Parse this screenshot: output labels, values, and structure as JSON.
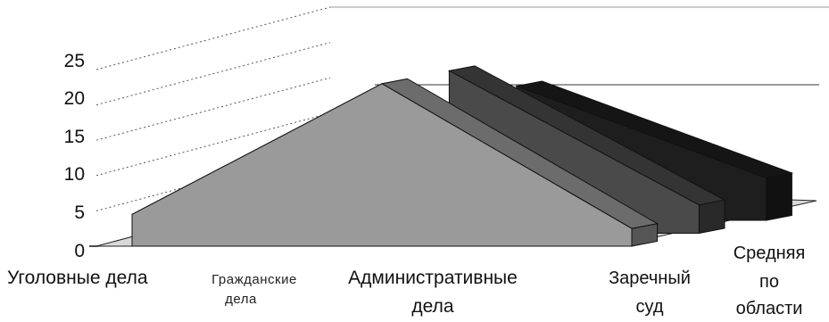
{
  "chart_data": {
    "type": "area",
    "variant": "3d-area",
    "title": "",
    "xlabel": "",
    "ylabel": "",
    "ylim": [
      0,
      25
    ],
    "yticks": [
      "0",
      "5",
      "10",
      "15",
      "20",
      "25"
    ],
    "categories": [
      [
        "Уголовные дела"
      ],
      [
        "Гражданские",
        "дела"
      ],
      [
        "Административные",
        "дела"
      ]
    ],
    "series": [
      {
        "name": [
          "Заречный",
          "суд"
        ],
        "values": [
          4.5,
          23,
          2.5
        ],
        "color": "#9a9a9a"
      },
      {
        "name": [
          "Средняя",
          "по",
          "области"
        ],
        "values": [
          null,
          23,
          4
        ],
        "color": "#4a4a4a"
      },
      {
        "values": [
          null,
          19,
          6
        ],
        "color": "#1e1e1e"
      }
    ],
    "grid": true,
    "legend": "none"
  }
}
